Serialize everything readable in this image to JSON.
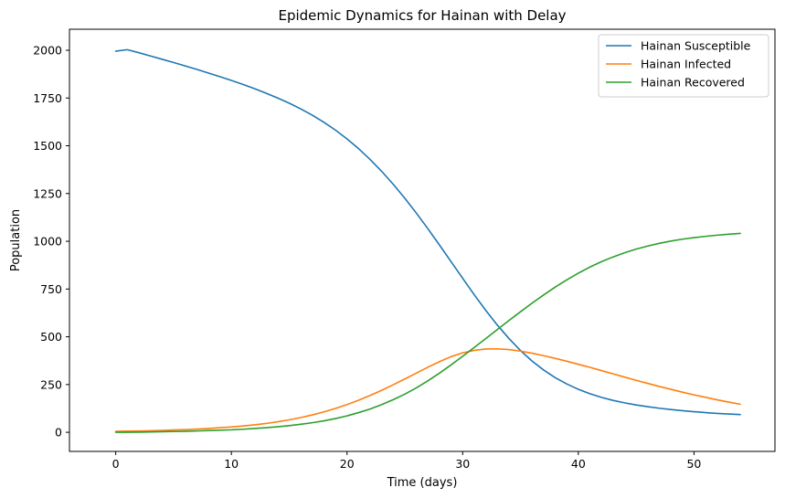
{
  "chart_data": {
    "type": "line",
    "title": "Epidemic Dynamics for Hainan with Delay",
    "xlabel": "Time (days)",
    "ylabel": "Population",
    "xlim": [
      -4,
      57
    ],
    "ylim": [
      -100,
      2110
    ],
    "xticks": [
      0,
      10,
      20,
      30,
      40,
      50
    ],
    "yticks": [
      0,
      250,
      500,
      750,
      1000,
      1250,
      1500,
      1750,
      2000
    ],
    "grid": false,
    "legend_position": "top-right",
    "x": [
      0,
      1,
      2,
      3,
      4,
      5,
      6,
      7,
      8,
      9,
      10,
      11,
      12,
      13,
      14,
      15,
      16,
      17,
      18,
      19,
      20,
      21,
      22,
      23,
      24,
      25,
      26,
      27,
      28,
      29,
      30,
      31,
      32,
      33,
      34,
      35,
      36,
      37,
      38,
      39,
      40,
      41,
      42,
      43,
      44,
      45,
      46,
      47,
      48,
      49,
      50,
      51,
      52,
      53,
      54
    ],
    "series": [
      {
        "name": "Hainan Susceptible",
        "color": "#1f77b4",
        "values": [
          1995,
          2003,
          1987,
          1970,
          1953,
          1936,
          1918,
          1900,
          1881,
          1862,
          1842,
          1821,
          1799,
          1775,
          1750,
          1723,
          1693,
          1660,
          1623,
          1582,
          1536,
          1485,
          1428,
          1366,
          1298,
          1225,
          1147,
          1065,
          980,
          893,
          806,
          720,
          638,
          561,
          491,
          428,
          373,
          326,
          286,
          253,
          225,
          202,
          183,
          167,
          154,
          143,
          134,
          126,
          119,
          113,
          108,
          103,
          99,
          96,
          93
        ]
      },
      {
        "name": "Hainan Infected",
        "color": "#ff7f0e",
        "values": [
          5,
          6,
          7,
          8,
          10,
          12,
          14,
          17,
          20,
          24,
          28,
          33,
          39,
          46,
          55,
          65,
          77,
          91,
          107,
          125,
          145,
          168,
          193,
          220,
          249,
          279,
          310,
          341,
          370,
          396,
          416,
          429,
          436,
          437,
          433,
          425,
          414,
          401,
          387,
          372,
          356,
          340,
          323,
          306,
          289,
          272,
          256,
          240,
          225,
          210,
          196,
          183,
          170,
          158,
          147
        ]
      },
      {
        "name": "Hainan Recovered",
        "color": "#2ca02c",
        "values": [
          0,
          0,
          1,
          2,
          3,
          4,
          5,
          7,
          9,
          11,
          13,
          16,
          20,
          24,
          29,
          35,
          42,
          50,
          60,
          72,
          86,
          103,
          122,
          145,
          171,
          200,
          233,
          270,
          310,
          353,
          398,
          444,
          491,
          538,
          585,
          631,
          676,
          719,
          760,
          798,
          833,
          865,
          893,
          918,
          940,
          959,
          975,
          989,
          1001,
          1011,
          1019,
          1026,
          1032,
          1037,
          1041
        ]
      }
    ]
  }
}
